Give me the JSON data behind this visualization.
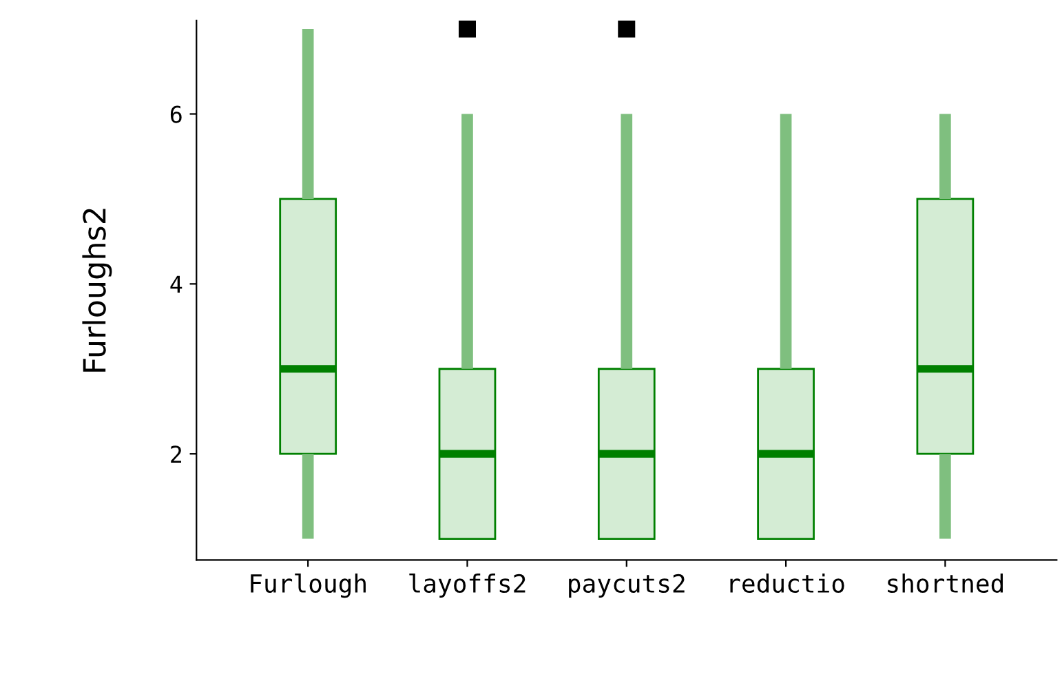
{
  "chart_data": {
    "type": "box",
    "ylabel": "Furloughs2",
    "categories": [
      "Furlough",
      "layoffs2",
      "paycuts2",
      "reductio",
      "shortned"
    ],
    "boxes": [
      {
        "low": 1,
        "q1": 2,
        "median": 3,
        "q3": 5,
        "high": 7
      },
      {
        "low": 1,
        "q1": 1,
        "median": 2,
        "q3": 3,
        "high": 6,
        "outliers": [
          7
        ]
      },
      {
        "low": 1,
        "q1": 1,
        "median": 2,
        "q3": 3,
        "high": 6,
        "outliers": [
          7
        ]
      },
      {
        "low": 1,
        "q1": 1,
        "median": 2,
        "q3": 3,
        "high": 6
      },
      {
        "low": 1,
        "q1": 2,
        "median": 3,
        "q3": 5,
        "high": 6
      }
    ],
    "color": "#008000",
    "ylim": [
      0.75,
      7.1
    ],
    "yticks": [
      2,
      4,
      6
    ],
    "grid": false
  }
}
